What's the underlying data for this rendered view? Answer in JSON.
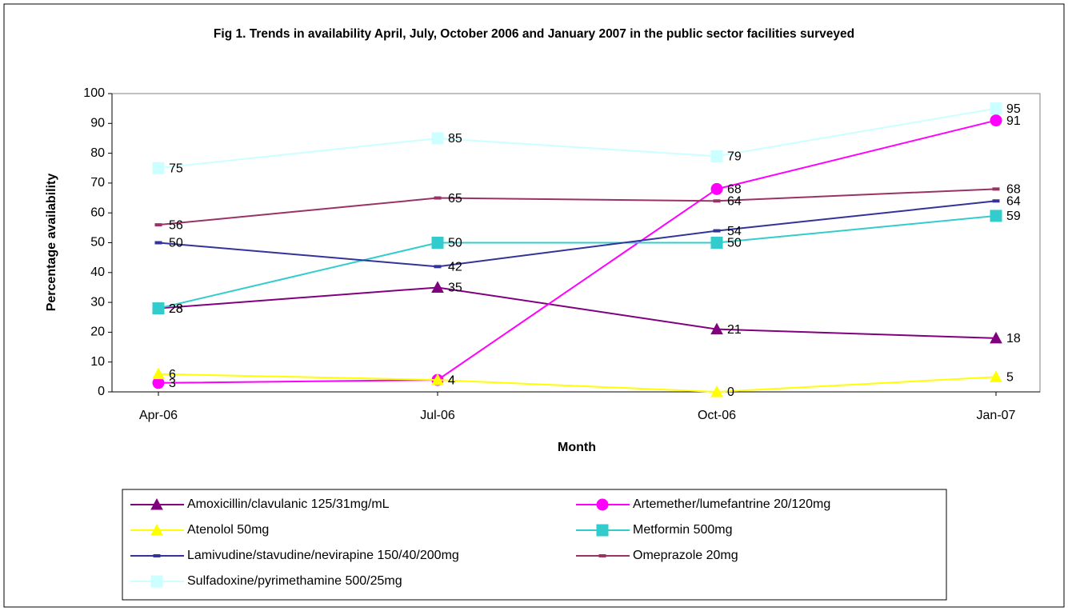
{
  "chart_data": {
    "type": "line",
    "title": "Fig 1. Trends in availability April, July, October 2006 and January 2007 in the public sector facilities surveyed",
    "x_label": "Month",
    "y_label": "Percentage availability",
    "categories": [
      "Apr-06",
      "Jul-06",
      "Oct-06",
      "Jan-07"
    ],
    "ylim": [
      0,
      100
    ],
    "yticks": [
      0,
      10,
      20,
      30,
      40,
      50,
      60,
      70,
      80,
      90,
      100
    ],
    "grid": false,
    "series": [
      {
        "name": "Amoxicillin/clavulanic 125/31mg/mL",
        "color": "#800080",
        "marker": "triangle",
        "values": [
          28,
          35,
          21,
          18
        ]
      },
      {
        "name": "Artemether/lumefantrine 20/120mg",
        "color": "#ff00ff",
        "marker": "circle",
        "values": [
          3,
          4,
          68,
          91
        ]
      },
      {
        "name": "Atenolol 50mg",
        "color": "#ffff00",
        "marker": "triangle",
        "values": [
          6,
          4,
          0,
          5
        ]
      },
      {
        "name": "Metformin 500mg",
        "color": "#33cccc",
        "marker": "square",
        "values": [
          28,
          50,
          50,
          59
        ]
      },
      {
        "name": "Lamivudine/stavudine/nevirapine 150/40/200mg",
        "color": "#333399",
        "marker": "dash",
        "values": [
          50,
          42,
          54,
          64
        ]
      },
      {
        "name": "Omeprazole 20mg",
        "color": "#993366",
        "marker": "dash",
        "values": [
          56,
          65,
          64,
          68
        ]
      },
      {
        "name": "Sulfadoxine/pyrimethamine 500/25mg",
        "color": "#ccffff",
        "marker": "square",
        "values": [
          75,
          85,
          79,
          95
        ]
      }
    ]
  }
}
